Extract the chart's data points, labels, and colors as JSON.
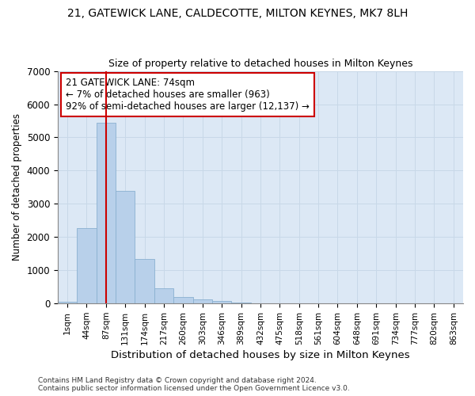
{
  "title1": "21, GATEWICK LANE, CALDECOTTE, MILTON KEYNES, MK7 8LH",
  "title2": "Size of property relative to detached houses in Milton Keynes",
  "xlabel": "Distribution of detached houses by size in Milton Keynes",
  "ylabel": "Number of detached properties",
  "categories": [
    "1sqm",
    "44sqm",
    "87sqm",
    "131sqm",
    "174sqm",
    "217sqm",
    "260sqm",
    "303sqm",
    "346sqm",
    "389sqm",
    "432sqm",
    "475sqm",
    "518sqm",
    "561sqm",
    "604sqm",
    "648sqm",
    "691sqm",
    "734sqm",
    "777sqm",
    "820sqm",
    "863sqm"
  ],
  "values": [
    60,
    2270,
    5450,
    3380,
    1350,
    450,
    190,
    130,
    70,
    30,
    0,
    0,
    0,
    0,
    0,
    0,
    0,
    0,
    0,
    0,
    0
  ],
  "bar_color": "#b8d0ea",
  "bar_edge_color": "#8ab0d0",
  "vline_x": 2,
  "vline_color": "#cc0000",
  "annotation_text": "21 GATEWICK LANE: 74sqm\n← 7% of detached houses are smaller (963)\n92% of semi-detached houses are larger (12,137) →",
  "annotation_box_color": "#ffffff",
  "annotation_box_edge": "#cc0000",
  "ylim": [
    0,
    7000
  ],
  "yticks": [
    0,
    1000,
    2000,
    3000,
    4000,
    5000,
    6000,
    7000
  ],
  "grid_color": "#c8d8e8",
  "bg_color": "#dce8f5",
  "fig_bg_color": "#ffffff",
  "footnote1": "Contains HM Land Registry data © Crown copyright and database right 2024.",
  "footnote2": "Contains public sector information licensed under the Open Government Licence v3.0."
}
